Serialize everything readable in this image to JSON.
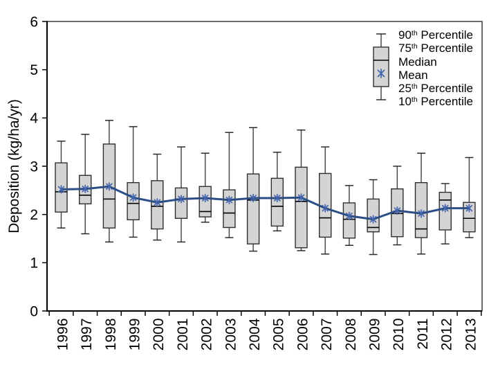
{
  "colors": {
    "background": "#ffffff",
    "frame": "#3c3c3c",
    "axis": "#000000",
    "text": "#000000",
    "box_fill": "#d4d4d4",
    "box_stroke": "#2e2e2e",
    "median": "#000000",
    "whisker": "#4a4a4a",
    "whisker_cap": "#2a2a2a",
    "mean_line": "#2B4E86",
    "mean_marker": "#4565AE"
  },
  "axes": {
    "y": {
      "title": "Deposition (kg/ha/yr)",
      "tick_labels": [
        "0",
        "1",
        "2",
        "3",
        "4",
        "5",
        "6"
      ],
      "range": [
        0,
        6
      ]
    },
    "x": {
      "tick_style": "between-categories"
    }
  },
  "legend": {
    "position": "top-right",
    "items": [
      {
        "pre": "90",
        "sup": "th",
        "post": " Percentile",
        "key": "p90"
      },
      {
        "pre": "75",
        "sup": "th",
        "post": " Percentile",
        "key": "p75"
      },
      {
        "pre": "Median",
        "sup": "",
        "post": "",
        "key": "median"
      },
      {
        "pre": "Mean",
        "sup": "",
        "post": "",
        "key": "mean"
      },
      {
        "pre": "25",
        "sup": "th",
        "post": " Percentile",
        "key": "p25"
      },
      {
        "pre": "10",
        "sup": "th",
        "post": " Percentile",
        "key": "p10"
      }
    ]
  },
  "chart_data": {
    "type": "boxplot",
    "title": "",
    "ylabel": "Deposition (kg/ha/yr)",
    "xlabel": "",
    "ylim": [
      0,
      6
    ],
    "yticks": [
      0,
      1,
      2,
      3,
      4,
      5,
      6
    ],
    "grid": false,
    "legend_position": "top-right",
    "categories": [
      "1996",
      "1997",
      "1998",
      "1999",
      "2000",
      "2001",
      "2002",
      "2003",
      "2004",
      "2005",
      "2006",
      "2007",
      "2008",
      "2009",
      "2010",
      "2011",
      "2012",
      "2013"
    ],
    "series": [
      {
        "name": "p90",
        "label": "90th Percentile",
        "values": [
          3.52,
          3.66,
          3.95,
          3.82,
          3.25,
          3.4,
          3.27,
          3.7,
          3.8,
          3.29,
          3.75,
          3.4,
          2.6,
          2.72,
          3.0,
          3.27,
          2.64,
          3.18
        ]
      },
      {
        "name": "p75",
        "label": "75th Percentile",
        "values": [
          3.07,
          2.81,
          3.46,
          2.66,
          2.7,
          2.55,
          2.58,
          2.51,
          2.84,
          2.75,
          2.98,
          2.85,
          2.24,
          2.32,
          2.53,
          2.66,
          2.46,
          2.25
        ]
      },
      {
        "name": "median",
        "label": "Median",
        "values": [
          2.47,
          2.4,
          2.32,
          2.23,
          2.17,
          2.32,
          2.06,
          2.03,
          2.3,
          2.17,
          2.27,
          1.93,
          1.9,
          1.73,
          2.02,
          1.7,
          2.3,
          1.92
        ]
      },
      {
        "name": "mean",
        "label": "Mean",
        "values": [
          2.52,
          2.53,
          2.58,
          2.35,
          2.25,
          2.32,
          2.34,
          2.3,
          2.34,
          2.34,
          2.35,
          2.13,
          1.97,
          1.9,
          2.08,
          2.02,
          2.13,
          2.13
        ]
      },
      {
        "name": "p25",
        "label": "25th Percentile",
        "values": [
          2.05,
          2.22,
          1.72,
          1.89,
          1.7,
          1.92,
          1.95,
          1.73,
          1.39,
          1.76,
          1.31,
          1.53,
          1.51,
          1.64,
          1.54,
          1.52,
          1.68,
          1.64
        ]
      },
      {
        "name": "p10",
        "label": "10th Percentile",
        "values": [
          1.72,
          1.6,
          1.43,
          1.53,
          1.47,
          1.43,
          1.84,
          1.52,
          1.24,
          1.66,
          1.25,
          1.18,
          1.36,
          1.17,
          1.37,
          1.18,
          1.39,
          1.52
        ]
      }
    ]
  }
}
